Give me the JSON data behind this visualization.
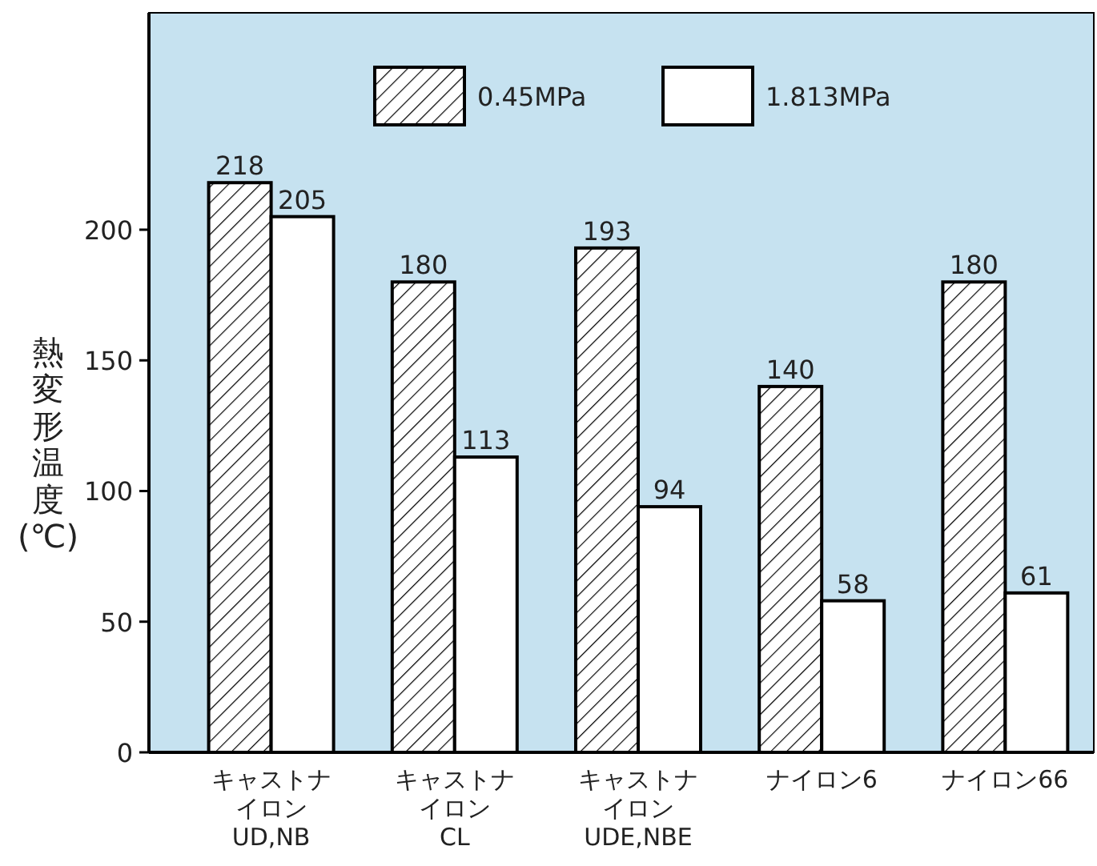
{
  "chart_data": {
    "type": "bar",
    "ylabel": "熱変形温度(℃)",
    "categories": [
      "キャストナイロン UD,NB",
      "キャストナイロン CL",
      "キャストナイロン UDE,NBE",
      "ナイロン6",
      "ナイロン66"
    ],
    "series": [
      {
        "name": "0.45MPa",
        "color": "#000000",
        "values": [
          218,
          180,
          193,
          140,
          180
        ]
      },
      {
        "name": "1.813MPa",
        "color": "#ffffff",
        "values": [
          205,
          113,
          94,
          58,
          61
        ]
      }
    ],
    "ylim": [
      0,
      283
    ],
    "yticks": [
      0,
      50,
      100,
      150,
      200
    ],
    "data_labels": true,
    "legend": "top",
    "grid": false
  }
}
